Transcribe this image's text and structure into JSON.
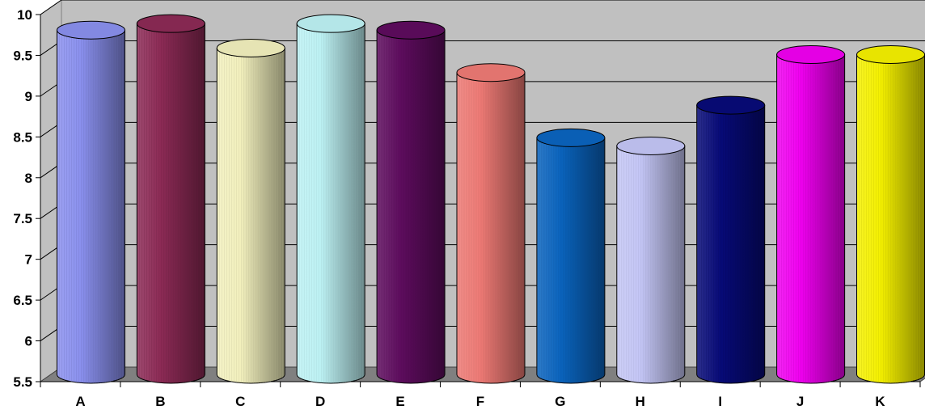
{
  "chart_data": {
    "type": "bar",
    "style": "3d-cylinder",
    "categories": [
      "A",
      "B",
      "C",
      "D",
      "E",
      "F",
      "G",
      "H",
      "I",
      "J",
      "K"
    ],
    "values": [
      9.72,
      9.8,
      9.5,
      9.8,
      9.72,
      9.2,
      8.4,
      8.3,
      8.8,
      9.42,
      9.42
    ],
    "colors": [
      "#8a90ee",
      "#8c2a55",
      "#f2f0bd",
      "#bdf2f4",
      "#5e0c5e",
      "#ee7a75",
      "#0a64be",
      "#c4c6f6",
      "#070a78",
      "#f000f0",
      "#f4f000"
    ],
    "title": "",
    "xlabel": "",
    "ylabel": "",
    "ylim": [
      5.5,
      10
    ],
    "yticks": [
      "5.5",
      "6",
      "6.5",
      "7",
      "7.5",
      "8",
      "8.5",
      "9",
      "9.5",
      "10"
    ],
    "grid": true,
    "legend": "none",
    "wall_color": "#c0c0c0",
    "floor_color": "#808080"
  }
}
